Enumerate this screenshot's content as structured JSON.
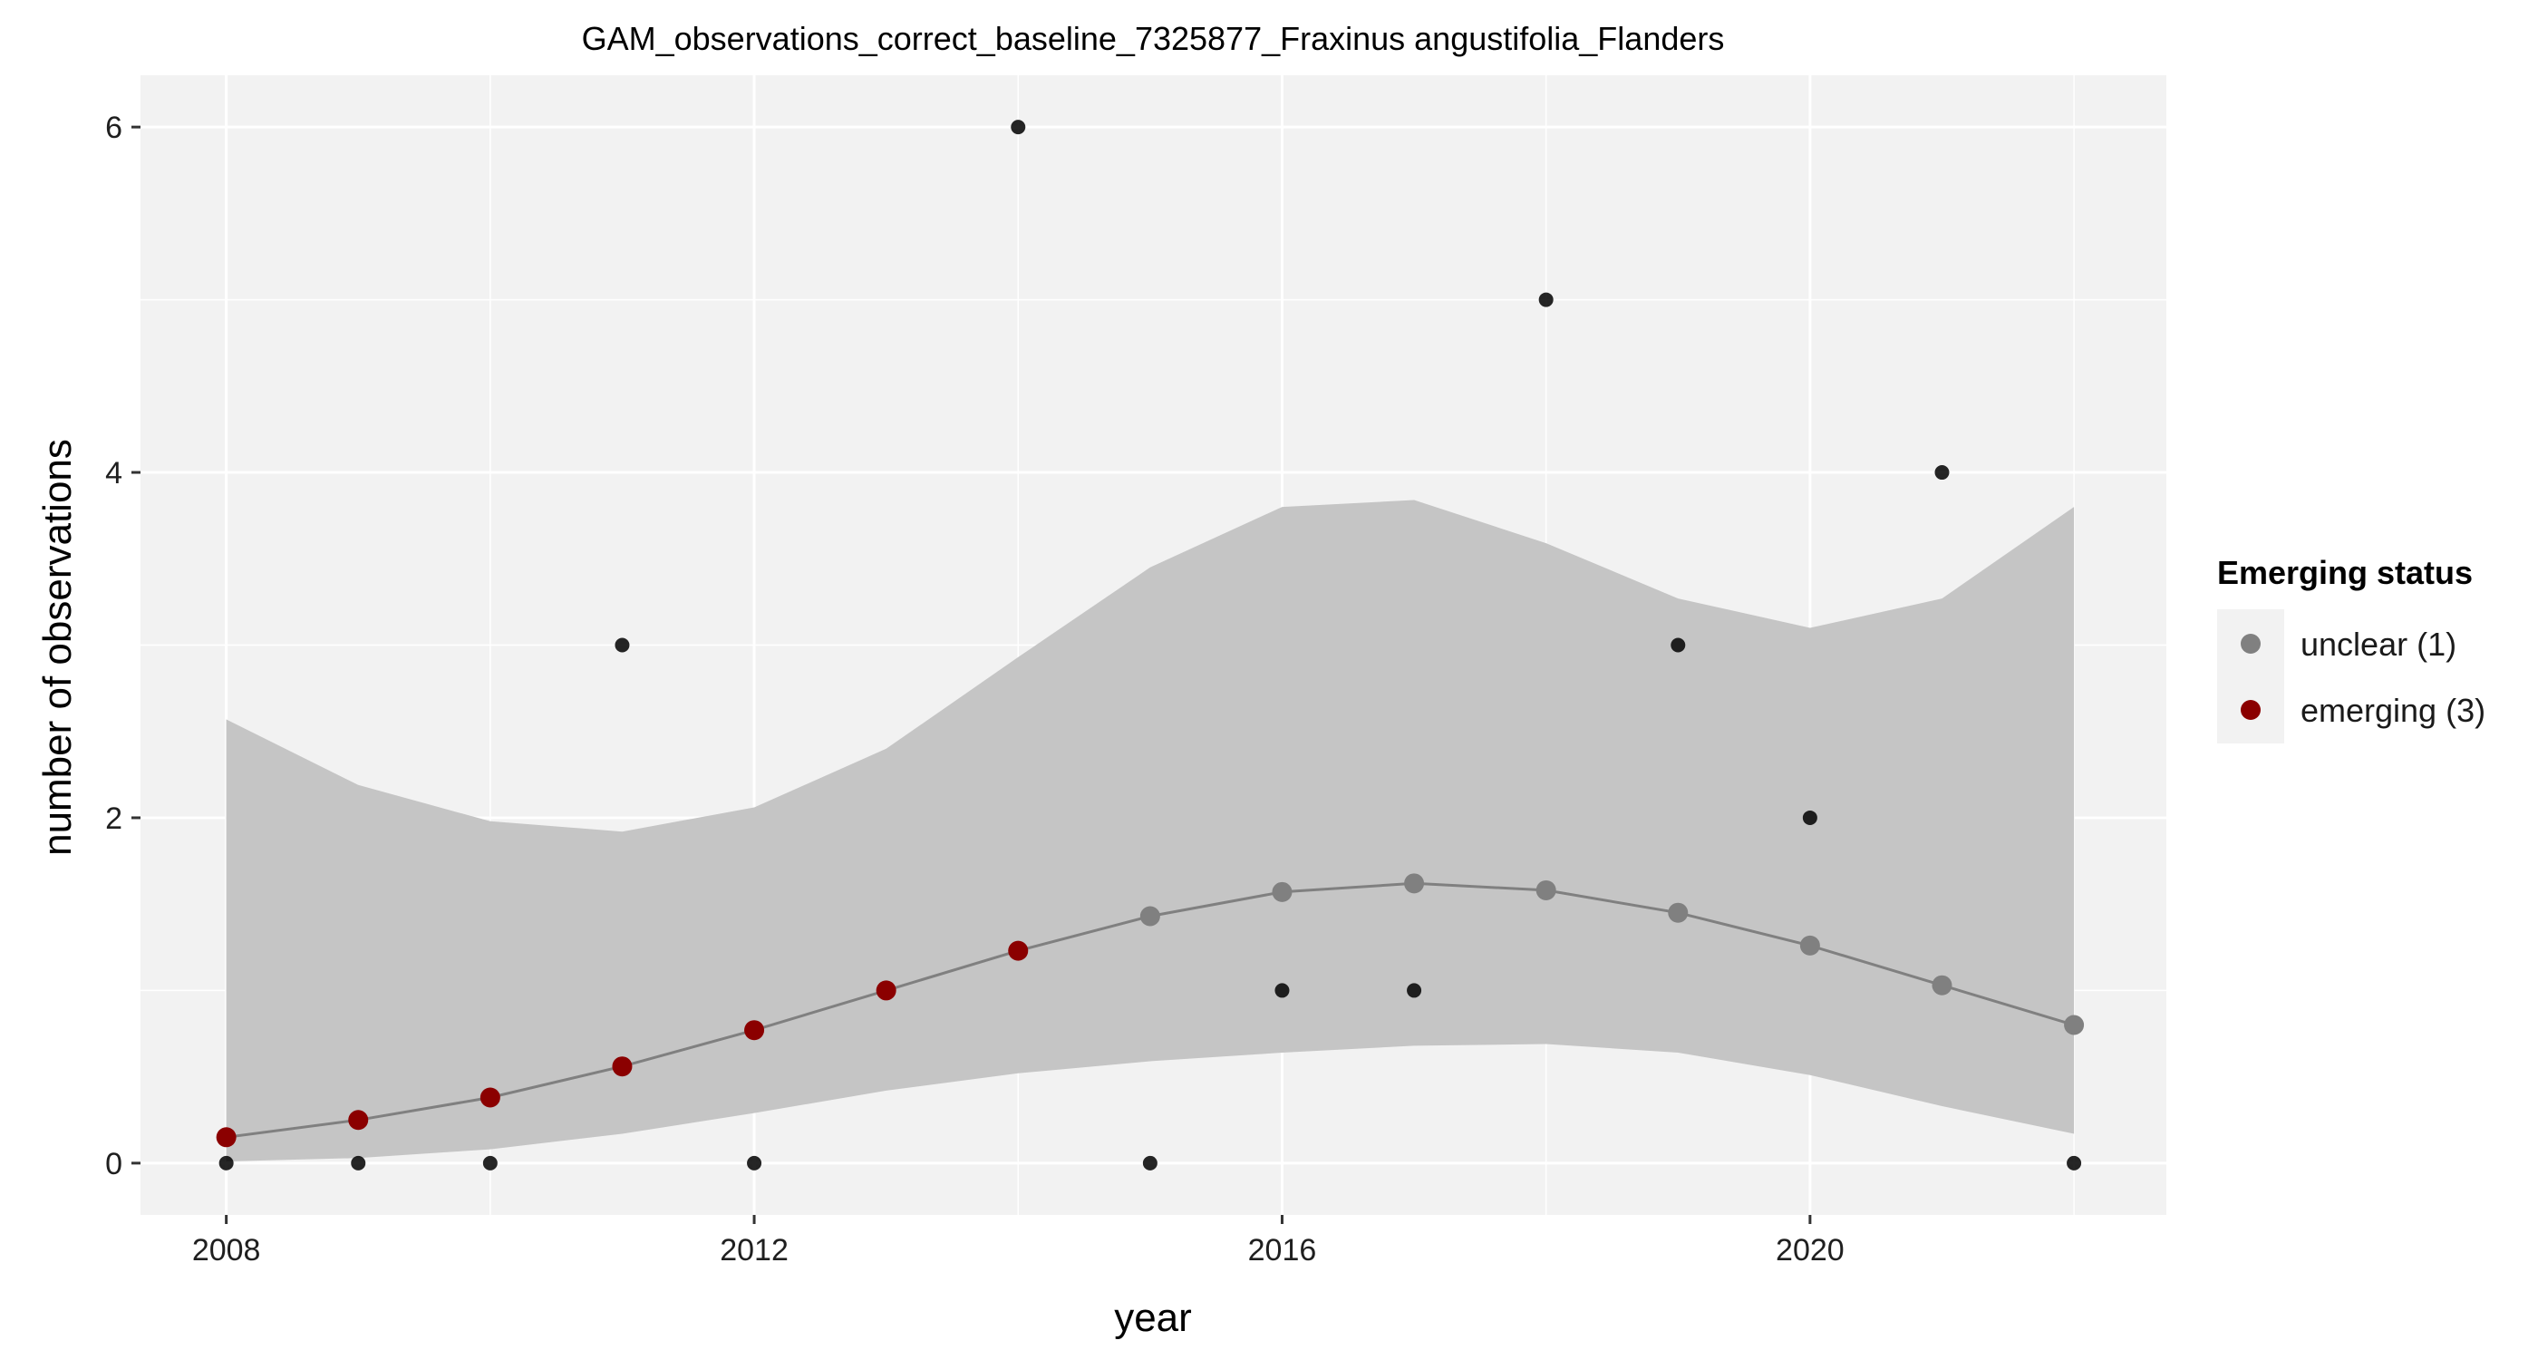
{
  "chart_data": {
    "type": "scatter",
    "title": "GAM_observations_correct_baseline_7325877_Fraxinus angustifolia_Flanders",
    "xlabel": "year",
    "ylabel": "number of observations",
    "xlim": [
      2007.35,
      2022.7
    ],
    "ylim": [
      -0.3,
      6.3
    ],
    "x_ticks": [
      2008,
      2012,
      2016,
      2020
    ],
    "x_tick_labels": [
      "2008",
      "2012",
      "2016",
      "2020"
    ],
    "y_ticks": [
      0,
      2,
      4,
      6
    ],
    "y_tick_labels": [
      "0",
      "2",
      "4",
      "6"
    ],
    "grid": true,
    "background": "#f2f2f2",
    "grid_color": "#ffffff",
    "observations": {
      "color": "#000000",
      "x": [
        2008,
        2009,
        2010,
        2011,
        2012,
        2013,
        2014,
        2015,
        2016,
        2017,
        2018,
        2019,
        2020,
        2021,
        2022
      ],
      "y": [
        0,
        0,
        0,
        3,
        0,
        1,
        6,
        0,
        1,
        1,
        5,
        3,
        2,
        4,
        0
      ]
    },
    "fit": {
      "line_color": "#808080",
      "ribbon_color": "#c5c5c5",
      "x": [
        2008,
        2009,
        2010,
        2011,
        2012,
        2013,
        2014,
        2015,
        2016,
        2017,
        2018,
        2019,
        2020,
        2021,
        2022
      ],
      "y": [
        0.15,
        0.25,
        0.38,
        0.56,
        0.77,
        1.0,
        1.23,
        1.43,
        1.57,
        1.62,
        1.58,
        1.45,
        1.26,
        1.03,
        0.8
      ],
      "lower": [
        0.01,
        0.03,
        0.08,
        0.17,
        0.29,
        0.42,
        0.52,
        0.59,
        0.64,
        0.68,
        0.69,
        0.64,
        0.51,
        0.33,
        0.17
      ],
      "upper": [
        2.57,
        2.19,
        1.98,
        1.92,
        2.06,
        2.4,
        2.93,
        3.45,
        3.8,
        3.84,
        3.59,
        3.27,
        3.1,
        3.27,
        3.8
      ],
      "status": [
        "emerging (3)",
        "emerging (3)",
        "emerging (3)",
        "emerging (3)",
        "emerging (3)",
        "emerging (3)",
        "emerging (3)",
        "unclear (1)",
        "unclear (1)",
        "unclear (1)",
        "unclear (1)",
        "unclear (1)",
        "unclear (1)",
        "unclear (1)",
        "unclear (1)"
      ]
    },
    "legend": {
      "title": "Emerging status",
      "position": "right",
      "items": [
        {
          "label": "unclear (1)",
          "color": "#808080"
        },
        {
          "label": "emerging (3)",
          "color": "#8b0000"
        }
      ]
    }
  }
}
